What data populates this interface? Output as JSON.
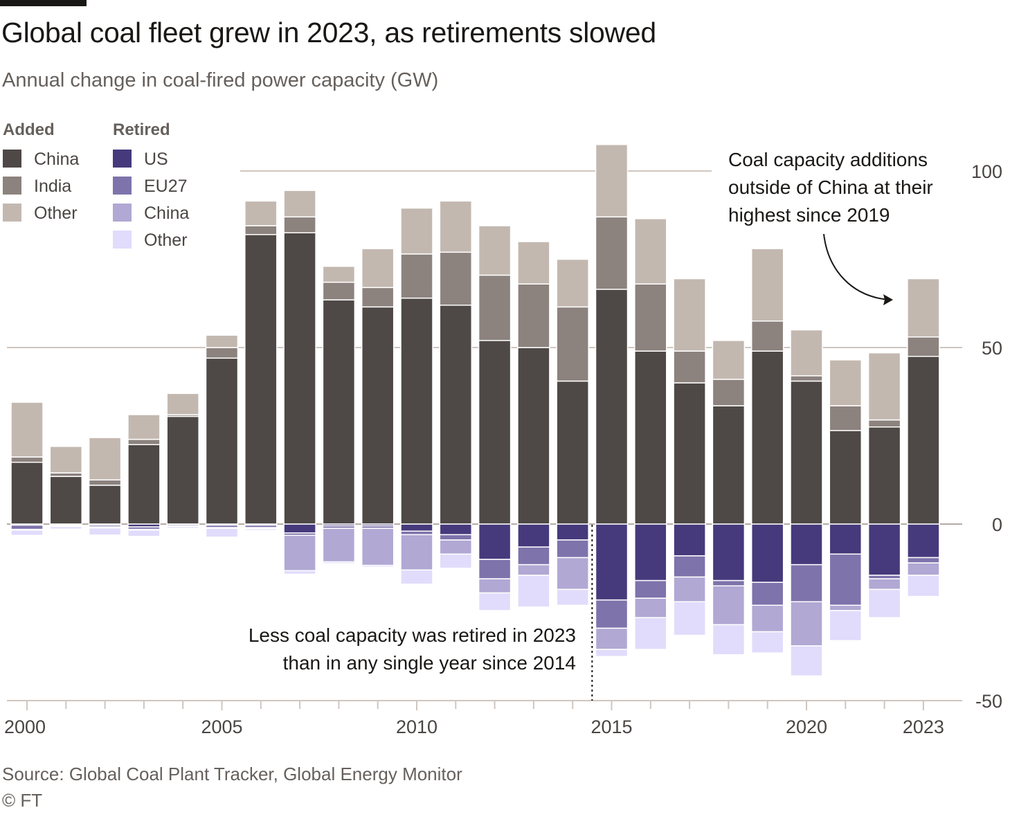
{
  "header": {
    "title": "Global coal fleet grew in 2023, as retirements slowed",
    "subtitle": "Annual change in coal-fired power capacity (GW)"
  },
  "footer": {
    "source": "Source: Global Coal Plant Tracker, Global Energy Monitor",
    "credit": "© FT"
  },
  "chart_data": {
    "type": "bar",
    "stacked": true,
    "title": "Global coal fleet grew in 2023, as retirements slowed",
    "subtitle": "Annual change in coal-fired power capacity (GW)",
    "ylim": [
      -50,
      110
    ],
    "yticks": [
      100,
      50,
      0,
      -50
    ],
    "ytick_labels": [
      "100",
      "50",
      "0",
      "-50"
    ],
    "xtick_labels": [
      "2000",
      "2005",
      "2010",
      "2015",
      "2020",
      "2023"
    ],
    "grid": true,
    "legend_position": "top-left",
    "legend_groups": [
      {
        "heading": "Added",
        "series": [
          "China",
          "India",
          "Other"
        ]
      },
      {
        "heading": "Retired",
        "series": [
          "US",
          "EU27",
          "China",
          "Other"
        ]
      }
    ],
    "categories": [
      "2000",
      "2001",
      "2002",
      "2003",
      "2004",
      "2005",
      "2006",
      "2007",
      "2008",
      "2009",
      "2010",
      "2011",
      "2012",
      "2013",
      "2014",
      "2015",
      "2016",
      "2017",
      "2018",
      "2019",
      "2020",
      "2021",
      "2022",
      "2023"
    ],
    "added_series": [
      {
        "name": "China",
        "color": "#4e4946",
        "values": [
          17.5,
          13.5,
          11.0,
          22.5,
          30.5,
          47.0,
          82.0,
          82.5,
          63.5,
          61.5,
          64.0,
          62.0,
          52.0,
          50.0,
          40.5,
          66.5,
          49.0,
          40.0,
          33.5,
          49.0,
          40.5,
          26.5,
          27.5,
          47.5
        ]
      },
      {
        "name": "India",
        "color": "#8c827e",
        "values": [
          1.5,
          1.0,
          1.5,
          1.5,
          0.5,
          3.0,
          2.5,
          4.5,
          5.0,
          5.5,
          12.5,
          15.0,
          18.5,
          18.0,
          21.0,
          20.5,
          19.0,
          9.0,
          7.5,
          8.5,
          1.5,
          7.0,
          2.0,
          5.5
        ]
      },
      {
        "name": "Other",
        "color": "#c3b8b0",
        "values": [
          15.5,
          7.5,
          12.0,
          7.0,
          6.0,
          3.5,
          7.0,
          7.5,
          4.5,
          11.0,
          13.0,
          14.5,
          14.0,
          12.0,
          13.5,
          20.5,
          18.5,
          20.5,
          11.0,
          20.5,
          13.0,
          13.0,
          19.0,
          16.5
        ]
      }
    ],
    "retired_series": [
      {
        "name": "US",
        "color": "#463a7c",
        "values": [
          -0.3,
          -0.2,
          -0.3,
          -0.8,
          -0.1,
          -0.3,
          -0.3,
          -2.5,
          -0.5,
          -0.5,
          -2.0,
          -3.0,
          -10.0,
          -6.5,
          -4.5,
          -21.5,
          -16.0,
          -9.0,
          -16.0,
          -16.5,
          -11.5,
          -8.5,
          -14.5,
          -9.5
        ]
      },
      {
        "name": "EU27",
        "color": "#7e73ab",
        "values": [
          -1.2,
          -0.3,
          -0.5,
          -0.7,
          -0.4,
          -0.7,
          -0.7,
          -0.7,
          -0.7,
          -0.7,
          -1.0,
          -1.5,
          -5.5,
          -5.0,
          -5.0,
          -8.0,
          -5.0,
          -6.0,
          -1.5,
          -6.5,
          -10.5,
          -14.5,
          -1.0,
          -1.5
        ]
      },
      {
        "name": "China",
        "color": "#b1a8d4",
        "values": [
          -0.2,
          -0.2,
          -0.3,
          -0.2,
          -0.2,
          -0.2,
          -0.3,
          -10.0,
          -9.5,
          -10.5,
          -10.0,
          -4.0,
          -4.0,
          -3.0,
          -9.0,
          -6.0,
          -5.5,
          -7.0,
          -11.0,
          -7.5,
          -12.5,
          -1.5,
          -3.0,
          -3.5
        ]
      },
      {
        "name": "Other",
        "color": "#e1dcfb",
        "values": [
          -1.5,
          -0.7,
          -2.0,
          -1.8,
          -0.5,
          -2.5,
          -0.5,
          -1.0,
          -0.5,
          -0.5,
          -4.0,
          -4.0,
          -5.0,
          -9.0,
          -4.5,
          -2.0,
          -9.0,
          -9.5,
          -8.5,
          -6.0,
          -8.5,
          -8.5,
          -8.0,
          -6.0
        ]
      }
    ],
    "annotations": [
      {
        "text_lines": [
          "Coal capacity additions",
          "outside of China at their",
          "highest since 2019"
        ],
        "points_to": "2023"
      },
      {
        "text_lines": [
          "Less coal capacity was retired in 2023",
          "than in any single year since 2014"
        ],
        "reference_line_between": [
          "2014",
          "2015"
        ]
      }
    ]
  }
}
